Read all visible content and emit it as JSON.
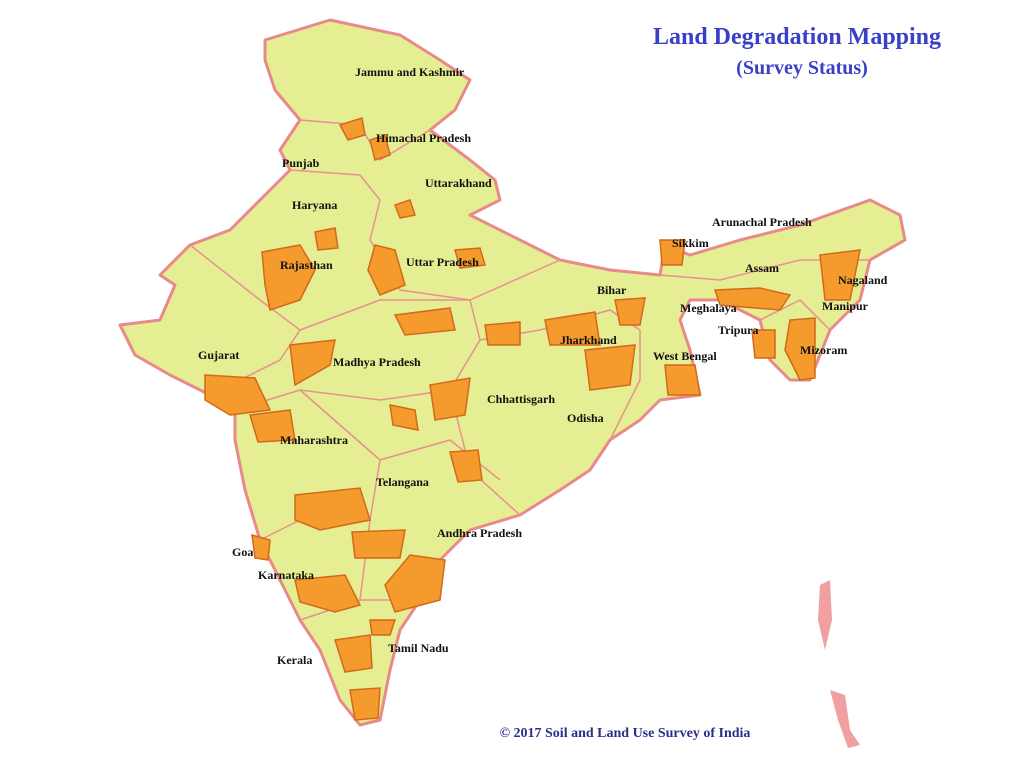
{
  "title": "Land Degradation Mapping",
  "subtitle": "(Survey Status)",
  "states": [
    "Jammu and Kashmir",
    "Himachal Pradesh",
    "Punjab",
    "Uttarakhand",
    "Haryana",
    "Arunachal Pradesh",
    "Sikkim",
    "Rajasthan",
    "Uttar Pradesh",
    "Assam",
    "Nagaland",
    "Bihar",
    "Meghalaya",
    "Manipur",
    "Tripura",
    "Jharkhand",
    "Gujarat",
    "Madhya Pradesh",
    "West Bengal",
    "Mizoram",
    "Chhattisgarh",
    "Odisha",
    "Maharashtra",
    "Telangana",
    "Andhra Pradesh",
    "Goa",
    "Karnataka",
    "Tamil Nadu",
    "Kerala"
  ],
  "credit": "© 2017 Soil and Land Use Survey of India"
}
